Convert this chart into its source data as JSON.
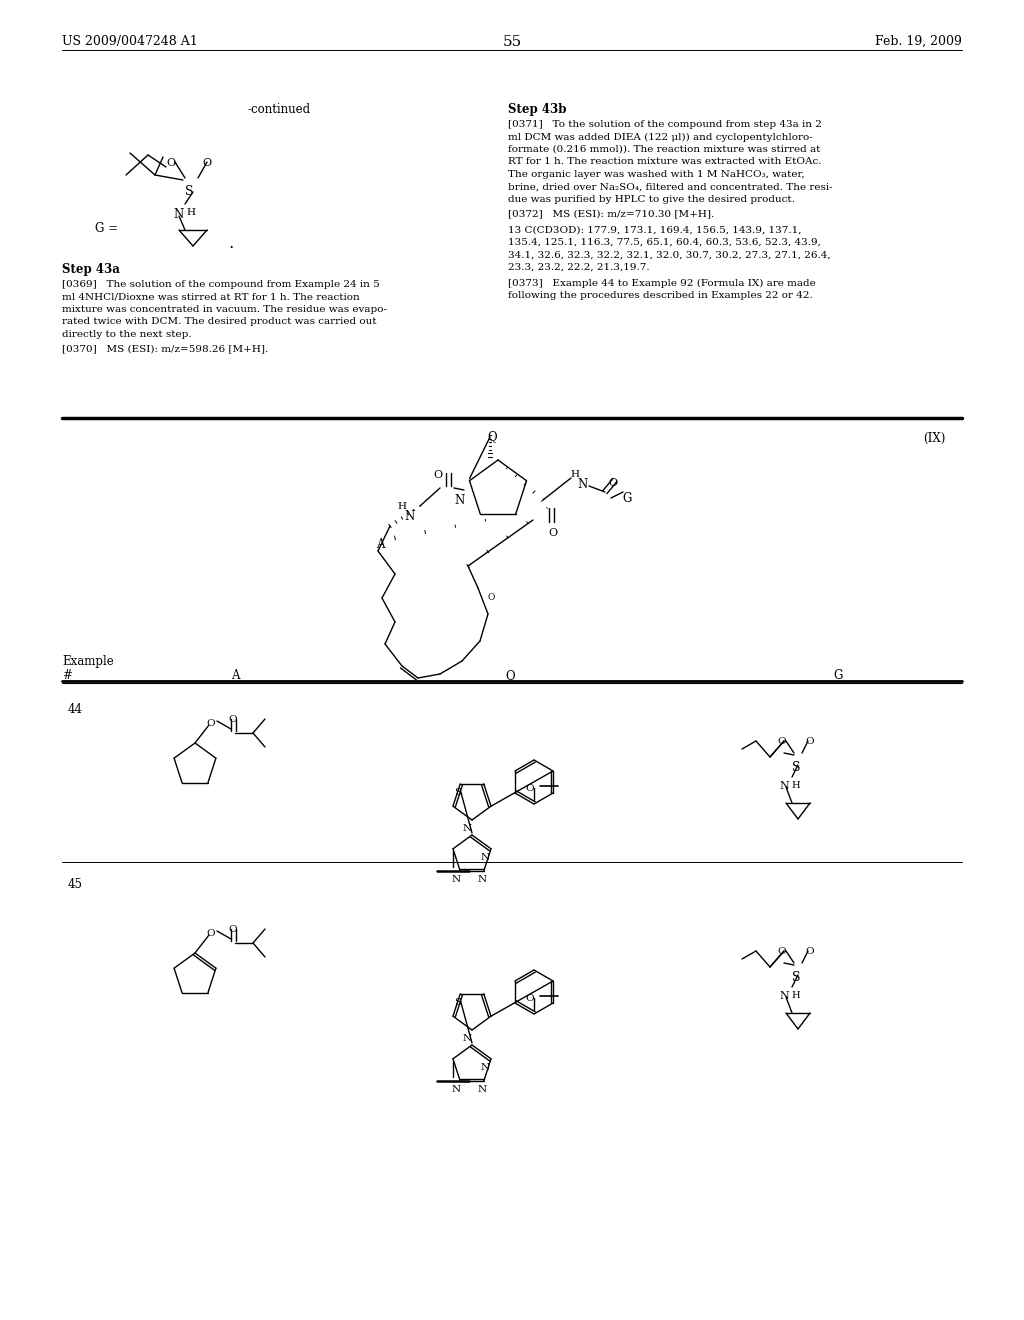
{
  "page_number": "55",
  "header_left": "US 2009/0047248 A1",
  "header_right": "Feb. 19, 2009",
  "bg_color": "#ffffff"
}
